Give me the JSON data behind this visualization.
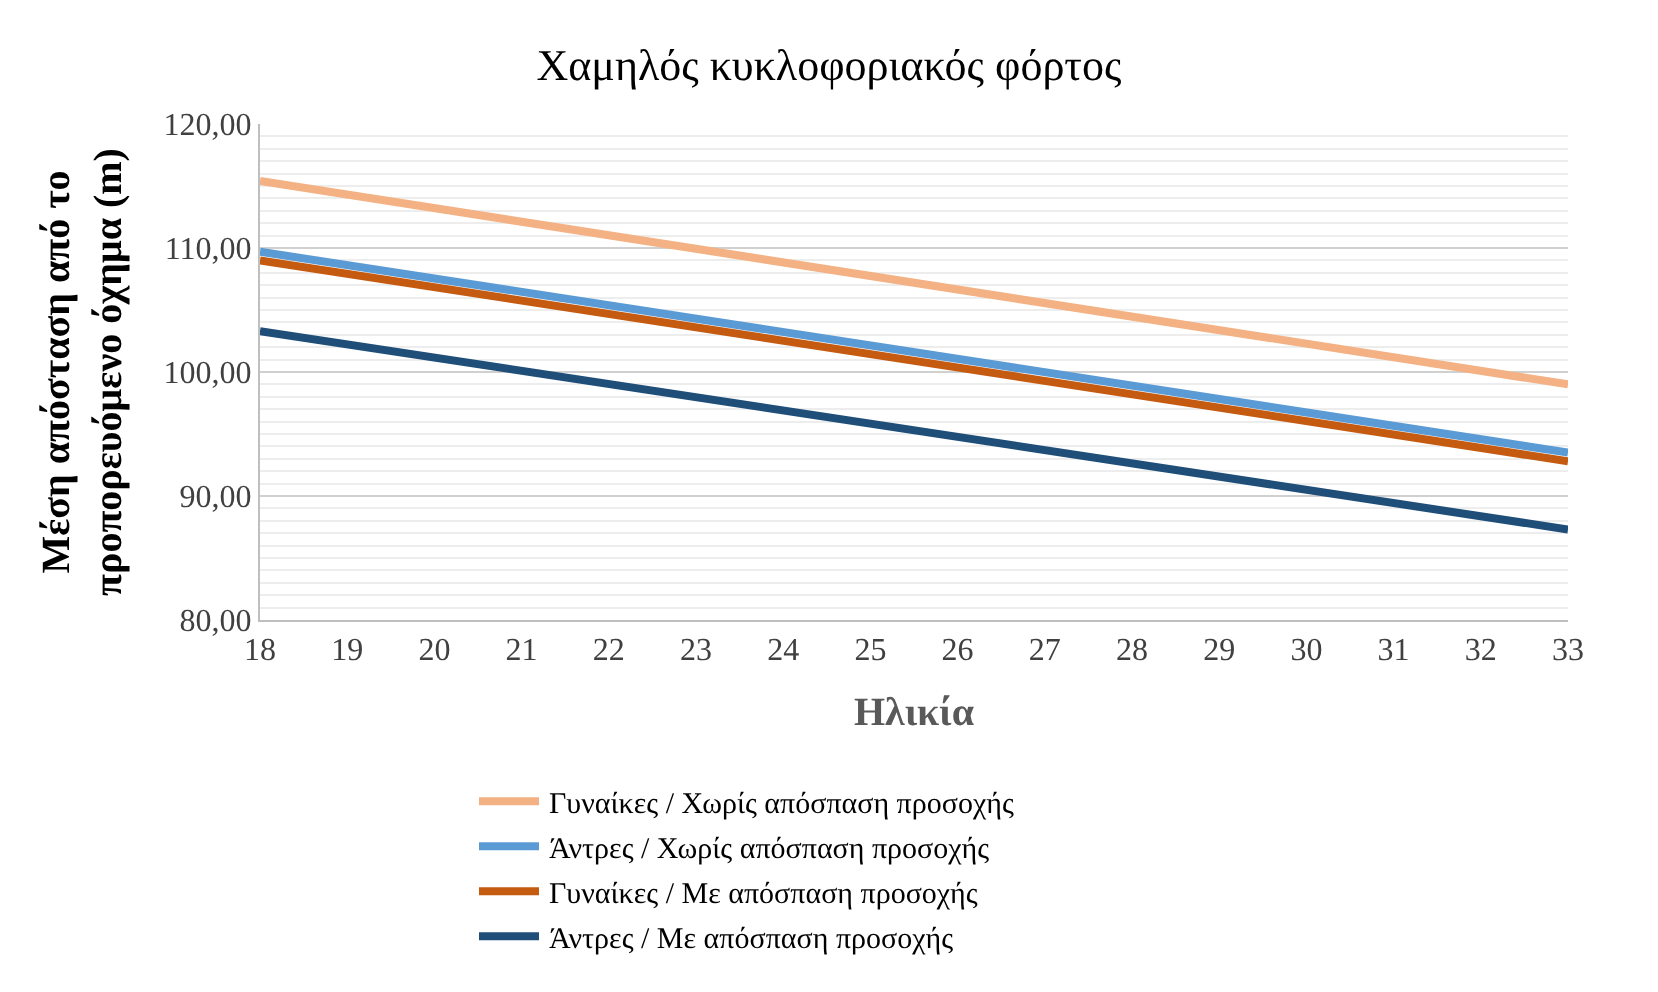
{
  "chart_data": {
    "type": "line",
    "title": "Χαμηλός κυκλοφοριακός φόρτος",
    "xlabel": "Ηλικία",
    "ylabel": "Μέση απόσταση από το προπορευόμενο όχημα (m)",
    "x": [
      18,
      33
    ],
    "series": [
      {
        "name": "Γυναίκες / Χωρίς απόσπαση προσοχής",
        "color": "#f4b183",
        "values": [
          115.4,
          99.0
        ]
      },
      {
        "name": "Άντρες / Χωρίς απόσπαση προσοχής",
        "color": "#5b9bd5",
        "values": [
          109.7,
          93.5
        ]
      },
      {
        "name": "Γυναίκες / Με απόσπαση προσοχής",
        "color": "#c55a11",
        "values": [
          109.0,
          92.8
        ]
      },
      {
        "name": "Άντρες / Με απόσπαση προσοχής",
        "color": "#1f4e79",
        "values": [
          103.3,
          87.3
        ]
      }
    ],
    "xlim": [
      18,
      33
    ],
    "xticks": [
      18,
      19,
      20,
      21,
      22,
      23,
      24,
      25,
      26,
      27,
      28,
      29,
      30,
      31,
      32,
      33
    ],
    "ylim": [
      80,
      120
    ],
    "yticks": [
      {
        "value": 80,
        "label": "80,00"
      },
      {
        "value": 90,
        "label": "90,00"
      },
      {
        "value": 100,
        "label": "100,00"
      },
      {
        "value": 110,
        "label": "110,00"
      },
      {
        "value": 120,
        "label": "120,00"
      }
    ],
    "grid": "y",
    "legend": "bottom",
    "marker": "none",
    "line_style": "solid"
  }
}
